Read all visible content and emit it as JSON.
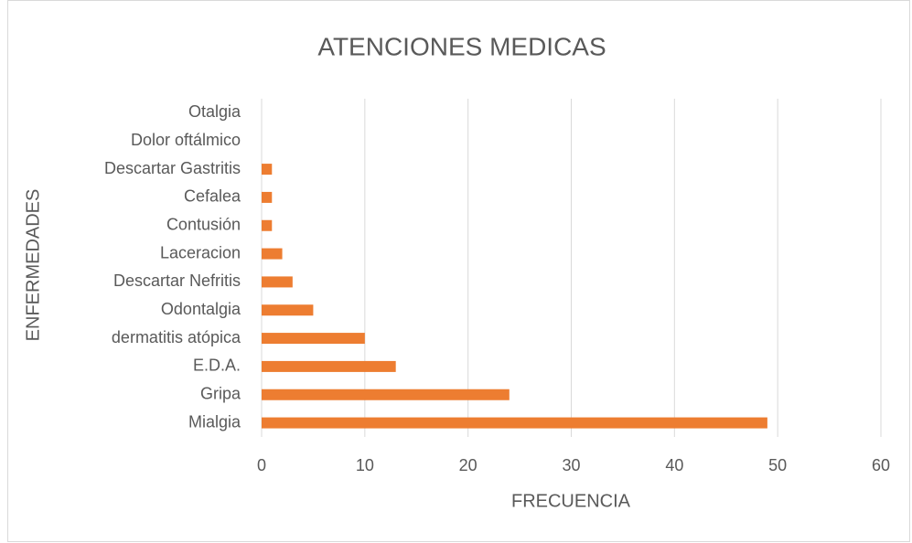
{
  "chart_data": {
    "type": "bar",
    "orientation": "horizontal",
    "title": "ATENCIONES MEDICAS",
    "x_label": "FRECUENCIA",
    "y_label": "ENFERMEDADES",
    "categories": [
      "Mialgia",
      "Gripa",
      "E.D.A.",
      "dermatitis atópica",
      "Odontalgia",
      "Descartar Nefritis",
      "Laceracion",
      "Contusión",
      "Cefalea",
      "Descartar Gastritis",
      "Dolor oftálmico",
      "Otalgia"
    ],
    "values": [
      49,
      24,
      13,
      10,
      5,
      3,
      2,
      1,
      1,
      1,
      0,
      0
    ],
    "color": "#ed7d31",
    "xlim": [
      0,
      60
    ],
    "xticks": [
      0,
      10,
      20,
      30,
      40,
      50,
      60
    ],
    "grid": true
  }
}
